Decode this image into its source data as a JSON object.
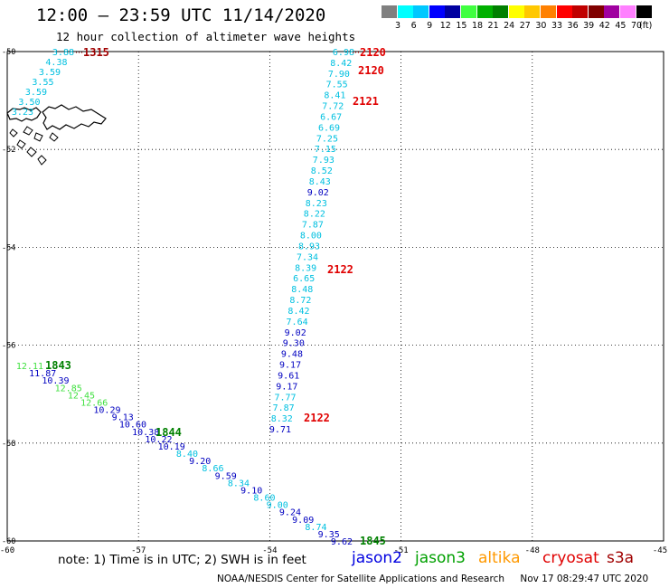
{
  "header": {
    "title": "12:00 – 23:59 UTC 11/14/2020",
    "subtitle": "12 hour collection of altimeter wave heights"
  },
  "colorbar": {
    "unit": "(ft)",
    "bins": [
      {
        "label": "3",
        "color": "#808080"
      },
      {
        "label": "6",
        "color": "#00ffff"
      },
      {
        "label": "9",
        "color": "#00c8ff"
      },
      {
        "label": "12",
        "color": "#0000ff"
      },
      {
        "label": "15",
        "color": "#0000a0"
      },
      {
        "label": "18",
        "color": "#40ff40"
      },
      {
        "label": "21",
        "color": "#00b000"
      },
      {
        "label": "24",
        "color": "#008000"
      },
      {
        "label": "27",
        "color": "#ffff00"
      },
      {
        "label": "30",
        "color": "#ffc800"
      },
      {
        "label": "33",
        "color": "#ff8000"
      },
      {
        "label": "36",
        "color": "#ff0000"
      },
      {
        "label": "39",
        "color": "#c00000"
      },
      {
        "label": "42",
        "color": "#800000"
      },
      {
        "label": "45",
        "color": "#a000a0"
      },
      {
        "label": "70",
        "color": "#ff80ff"
      },
      {
        "label": "",
        "color": "#000000"
      }
    ]
  },
  "map": {
    "lon_range": [
      -60,
      -45
    ],
    "lat_range": [
      -60,
      -50
    ],
    "lon_ticks": [
      "-60",
      "-57",
      "-54",
      "-51",
      "-48",
      "-45"
    ],
    "lat_ticks": [
      "-50",
      "-52",
      "-54",
      "-56",
      "-58",
      "-60"
    ],
    "colors": {
      "cyan": "#00c0e0",
      "blue": "#0000c0",
      "green": "#40e040",
      "red": "#e00000",
      "darkgreen": "#008000",
      "darkred": "#a00000"
    },
    "track1": [
      {
        "v": "6.98",
        "c": "cyan"
      },
      {
        "v": "8.42",
        "c": "cyan"
      },
      {
        "v": "7.90",
        "c": "cyan"
      },
      {
        "v": "7.55",
        "c": "cyan"
      },
      {
        "v": "8.41",
        "c": "cyan"
      },
      {
        "v": "7.72",
        "c": "cyan"
      },
      {
        "v": "6.67",
        "c": "cyan"
      },
      {
        "v": "6.69",
        "c": "cyan"
      },
      {
        "v": "7.25",
        "c": "cyan"
      },
      {
        "v": "7.15",
        "c": "cyan"
      },
      {
        "v": "7.93",
        "c": "cyan"
      },
      {
        "v": "8.52",
        "c": "cyan"
      },
      {
        "v": "8.43",
        "c": "cyan"
      },
      {
        "v": "9.02",
        "c": "blue"
      },
      {
        "v": "8.23",
        "c": "cyan"
      },
      {
        "v": "8.22",
        "c": "cyan"
      },
      {
        "v": "7.87",
        "c": "cyan"
      },
      {
        "v": "8.00",
        "c": "cyan"
      },
      {
        "v": "8.93",
        "c": "cyan"
      },
      {
        "v": "7.34",
        "c": "cyan"
      },
      {
        "v": "8.39",
        "c": "cyan"
      },
      {
        "v": "6.65",
        "c": "cyan"
      },
      {
        "v": "8.48",
        "c": "cyan"
      },
      {
        "v": "8.72",
        "c": "cyan"
      },
      {
        "v": "8.42",
        "c": "cyan"
      },
      {
        "v": "7.64",
        "c": "cyan"
      },
      {
        "v": "9.02",
        "c": "blue"
      },
      {
        "v": "9.30",
        "c": "blue"
      },
      {
        "v": "9.48",
        "c": "blue"
      },
      {
        "v": "9.17",
        "c": "blue"
      },
      {
        "v": "9.61",
        "c": "blue"
      },
      {
        "v": "9.17",
        "c": "blue"
      },
      {
        "v": "7.77",
        "c": "cyan"
      },
      {
        "v": "7.87",
        "c": "cyan"
      },
      {
        "v": "8.32",
        "c": "cyan"
      },
      {
        "v": "9.71",
        "c": "blue"
      }
    ],
    "track2": [
      {
        "v": "3.88",
        "c": "cyan"
      },
      {
        "v": "4.38",
        "c": "cyan"
      },
      {
        "v": "3.59",
        "c": "cyan"
      },
      {
        "v": "3.55",
        "c": "cyan"
      },
      {
        "v": "3.59",
        "c": "cyan"
      },
      {
        "v": "3.50",
        "c": "cyan"
      },
      {
        "v": "3.23",
        "c": "cyan"
      }
    ],
    "track3": [
      {
        "v": "12.11",
        "c": "green"
      },
      {
        "v": "11.87",
        "c": "blue"
      },
      {
        "v": "10.39",
        "c": "blue"
      },
      {
        "v": "12.85",
        "c": "green"
      },
      {
        "v": "12.45",
        "c": "green"
      },
      {
        "v": "12.66",
        "c": "green"
      },
      {
        "v": "10.29",
        "c": "blue"
      },
      {
        "v": "9.13",
        "c": "blue"
      },
      {
        "v": "10.60",
        "c": "blue"
      },
      {
        "v": "10.38",
        "c": "blue"
      },
      {
        "v": "10.22",
        "c": "blue"
      },
      {
        "v": "10.19",
        "c": "blue"
      },
      {
        "v": "8.40",
        "c": "cyan"
      },
      {
        "v": "9.20",
        "c": "blue"
      },
      {
        "v": "8.66",
        "c": "cyan"
      },
      {
        "v": "9.59",
        "c": "blue"
      },
      {
        "v": "8.34",
        "c": "cyan"
      },
      {
        "v": "9.10",
        "c": "blue"
      },
      {
        "v": "8.60",
        "c": "cyan"
      },
      {
        "v": "9.00",
        "c": "cyan"
      },
      {
        "v": "9.24",
        "c": "blue"
      },
      {
        "v": "9.09",
        "c": "blue"
      },
      {
        "v": "8.74",
        "c": "cyan"
      },
      {
        "v": "9.35",
        "c": "blue"
      },
      {
        "v": "9.62",
        "c": "blue"
      }
    ],
    "time_labels": [
      {
        "text": "2120",
        "c": "red"
      },
      {
        "text": "2120",
        "c": "red"
      },
      {
        "text": "2121",
        "c": "red"
      },
      {
        "text": "2122",
        "c": "red"
      },
      {
        "text": "2122",
        "c": "red"
      },
      {
        "text": "1315",
        "c": "darkred"
      },
      {
        "text": "1843",
        "c": "darkgreen"
      },
      {
        "text": "1844",
        "c": "darkgreen"
      },
      {
        "text": "1845",
        "c": "darkgreen"
      }
    ]
  },
  "legend": {
    "note": "note:  1) Time is in UTC;  2) SWH is in feet",
    "satellites": [
      {
        "name": "jason2",
        "color": "#0000e0"
      },
      {
        "name": "jason3",
        "color": "#00a000"
      },
      {
        "name": "altika",
        "color": "#ff9900"
      },
      {
        "name": "cryosat",
        "color": "#e00000"
      },
      {
        "name": "s3a",
        "color": "#a00000"
      }
    ]
  },
  "footer": {
    "credit": "NOAA/NESDIS Center for Satellite Applications and Research",
    "timestamp": "Nov 17 08:29:47 UTC 2020"
  }
}
